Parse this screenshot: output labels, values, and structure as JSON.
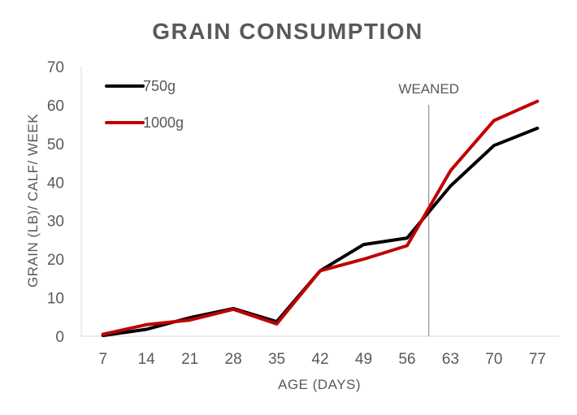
{
  "chart_data": {
    "type": "line",
    "title": "GRAIN CONSUMPTION",
    "xlabel": "AGE (DAYS)",
    "ylabel": "GRAIN (LB)/ CALF/ WEEK",
    "x": [
      7,
      14,
      21,
      28,
      35,
      42,
      49,
      56,
      63,
      70,
      77
    ],
    "ylim": [
      0,
      70
    ],
    "yticks": [
      0,
      10,
      20,
      30,
      40,
      50,
      60,
      70
    ],
    "grid": false,
    "legend_position": "top-left",
    "series": [
      {
        "name": "750g",
        "color": "#000000",
        "values": [
          0.2,
          1.8,
          4.8,
          7.2,
          3.8,
          17.0,
          23.8,
          25.5,
          39.0,
          49.5,
          54.0
        ]
      },
      {
        "name": "1000g",
        "color": "#c00000",
        "values": [
          0.5,
          3.0,
          4.2,
          7.0,
          3.2,
          17.0,
          20.0,
          23.5,
          43.0,
          56.0,
          61.0
        ]
      }
    ],
    "annotations": [
      {
        "text": "WEANED",
        "x": 59.5,
        "type": "vertical-line"
      }
    ]
  }
}
